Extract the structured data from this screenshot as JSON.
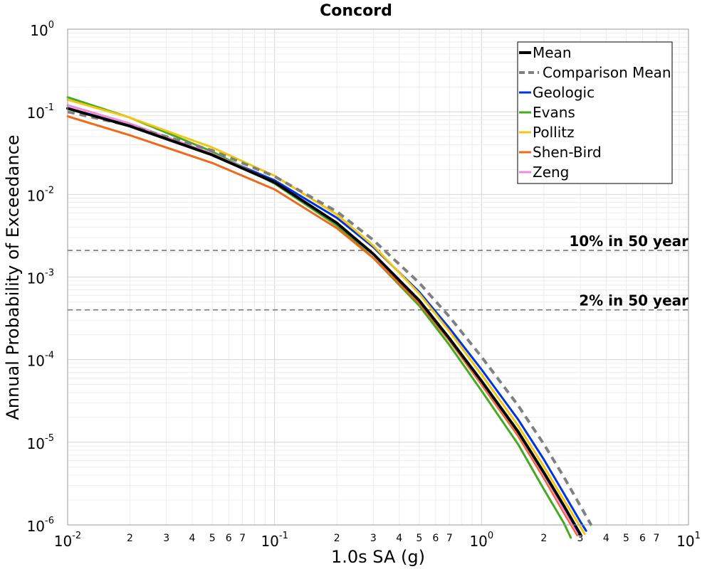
{
  "chart_data": {
    "type": "line",
    "title": "Concord",
    "xlabel": "1.0s SA (g)",
    "ylabel": "Annual Probability of Exceedance",
    "xscale": "log",
    "yscale": "log",
    "xlim": [
      0.01,
      10
    ],
    "ylim": [
      1e-06,
      1
    ],
    "grid": true,
    "legend_position": "top-right",
    "x_major_ticks": [
      {
        "value": 0.01,
        "base": "10",
        "exp": "-2"
      },
      {
        "value": 0.1,
        "base": "10",
        "exp": "-1"
      },
      {
        "value": 1,
        "base": "10",
        "exp": "0"
      },
      {
        "value": 10,
        "base": "10",
        "exp": "1"
      }
    ],
    "x_minor_ticks": [
      {
        "value": 0.02,
        "label": "2"
      },
      {
        "value": 0.03,
        "label": "3"
      },
      {
        "value": 0.04,
        "label": "4"
      },
      {
        "value": 0.05,
        "label": "5"
      },
      {
        "value": 0.06,
        "label": "6"
      },
      {
        "value": 0.07,
        "label": "7"
      },
      {
        "value": 0.2,
        "label": "2"
      },
      {
        "value": 0.3,
        "label": "3"
      },
      {
        "value": 0.4,
        "label": "4"
      },
      {
        "value": 0.5,
        "label": "5"
      },
      {
        "value": 0.6,
        "label": "6"
      },
      {
        "value": 0.7,
        "label": "7"
      },
      {
        "value": 2,
        "label": "2"
      },
      {
        "value": 3,
        "label": "3"
      },
      {
        "value": 4,
        "label": "4"
      },
      {
        "value": 5,
        "label": "5"
      },
      {
        "value": 6,
        "label": "6"
      },
      {
        "value": 7,
        "label": "7"
      }
    ],
    "y_major_ticks": [
      {
        "value": 1,
        "base": "10",
        "exp": "0"
      },
      {
        "value": 0.1,
        "base": "10",
        "exp": "-1"
      },
      {
        "value": 0.01,
        "base": "10",
        "exp": "-2"
      },
      {
        "value": 0.001,
        "base": "10",
        "exp": "-3"
      },
      {
        "value": 0.0001,
        "base": "10",
        "exp": "-4"
      },
      {
        "value": 1e-05,
        "base": "10",
        "exp": "-5"
      },
      {
        "value": 1e-06,
        "base": "10",
        "exp": "-6"
      }
    ],
    "reference_lines": [
      {
        "label": "10% in 50 year",
        "y": 0.0021
      },
      {
        "label": "2% in 50 year",
        "y": 0.0004
      }
    ],
    "series": [
      {
        "name": "Mean",
        "color": "#000000",
        "dash": "solid",
        "weight": "thick",
        "x": [
          0.01,
          0.02,
          0.05,
          0.1,
          0.2,
          0.3,
          0.5,
          0.7,
          1.0,
          1.5,
          2.0,
          2.5,
          3.0
        ],
        "y": [
          0.11,
          0.067,
          0.03,
          0.014,
          0.0045,
          0.0019,
          0.00052,
          0.00018,
          5.5e-05,
          1.35e-05,
          4.3e-06,
          1.7e-06,
          7.7e-07
        ]
      },
      {
        "name": "Comparison Mean",
        "color": "#808080",
        "dash": "dashed",
        "weight": "thick",
        "x": [
          0.01,
          0.02,
          0.05,
          0.1,
          0.2,
          0.3,
          0.5,
          0.7,
          1.0,
          1.5,
          2.0,
          2.5,
          3.0,
          3.4
        ],
        "y": [
          0.1,
          0.068,
          0.034,
          0.0165,
          0.0062,
          0.0028,
          0.00085,
          0.00033,
          0.000108,
          2.8e-05,
          9.5e-06,
          3.8e-06,
          1.7e-06,
          9.8e-07
        ]
      },
      {
        "name": "Geologic",
        "color": "#0033dd",
        "dash": "solid",
        "weight": "normal",
        "x": [
          0.01,
          0.02,
          0.05,
          0.1,
          0.2,
          0.3,
          0.5,
          0.7,
          1.0,
          1.5,
          2.0,
          2.5,
          3.0,
          3.2
        ],
        "y": [
          0.11,
          0.068,
          0.031,
          0.0148,
          0.0052,
          0.0023,
          0.00066,
          0.00024,
          7.6e-05,
          1.9e-05,
          6.2e-06,
          2.4e-06,
          1.1e-06,
          8.5e-07
        ]
      },
      {
        "name": "Evans",
        "color": "#44aa22",
        "dash": "solid",
        "weight": "normal",
        "x": [
          0.01,
          0.02,
          0.05,
          0.1,
          0.2,
          0.3,
          0.5,
          0.7,
          1.0,
          1.5,
          2.0,
          2.5,
          2.7
        ],
        "y": [
          0.15,
          0.085,
          0.033,
          0.0135,
          0.0042,
          0.0017,
          0.00045,
          0.00015,
          4.2e-05,
          9.5e-06,
          2.7e-06,
          1.05e-06,
          7e-07
        ]
      },
      {
        "name": "Pollitz",
        "color": "#f0c814",
        "dash": "solid",
        "weight": "normal",
        "x": [
          0.01,
          0.02,
          0.05,
          0.1,
          0.2,
          0.3,
          0.5,
          0.7,
          1.0,
          1.5,
          2.0,
          2.5,
          3.0,
          3.15
        ],
        "y": [
          0.14,
          0.085,
          0.037,
          0.0168,
          0.0057,
          0.0024,
          0.00063,
          0.00022,
          6.6e-05,
          1.6e-05,
          5.1e-06,
          2e-06,
          9.5e-07,
          7.8e-07
        ]
      },
      {
        "name": "Shen-Bird",
        "color": "#ee6a1a",
        "dash": "solid",
        "weight": "normal",
        "x": [
          0.01,
          0.02,
          0.05,
          0.1,
          0.2,
          0.3,
          0.5,
          0.7,
          1.0,
          1.5,
          2.0,
          2.5,
          2.9
        ],
        "y": [
          0.088,
          0.052,
          0.024,
          0.0115,
          0.0039,
          0.0017,
          0.00048,
          0.00017,
          5e-05,
          1.2e-05,
          3.7e-06,
          1.4e-06,
          7.5e-07
        ]
      },
      {
        "name": "Zeng",
        "color": "#ee88dd",
        "dash": "solid",
        "weight": "normal",
        "x": [
          0.01,
          0.02,
          0.05,
          0.1,
          0.2,
          0.3,
          0.5,
          0.7,
          1.0,
          1.5,
          2.0,
          2.5,
          2.95
        ],
        "y": [
          0.12,
          0.072,
          0.031,
          0.014,
          0.0045,
          0.0019,
          0.00051,
          0.00018,
          5.3e-05,
          1.3e-05,
          4e-06,
          1.5e-06,
          7.5e-07
        ]
      }
    ]
  }
}
